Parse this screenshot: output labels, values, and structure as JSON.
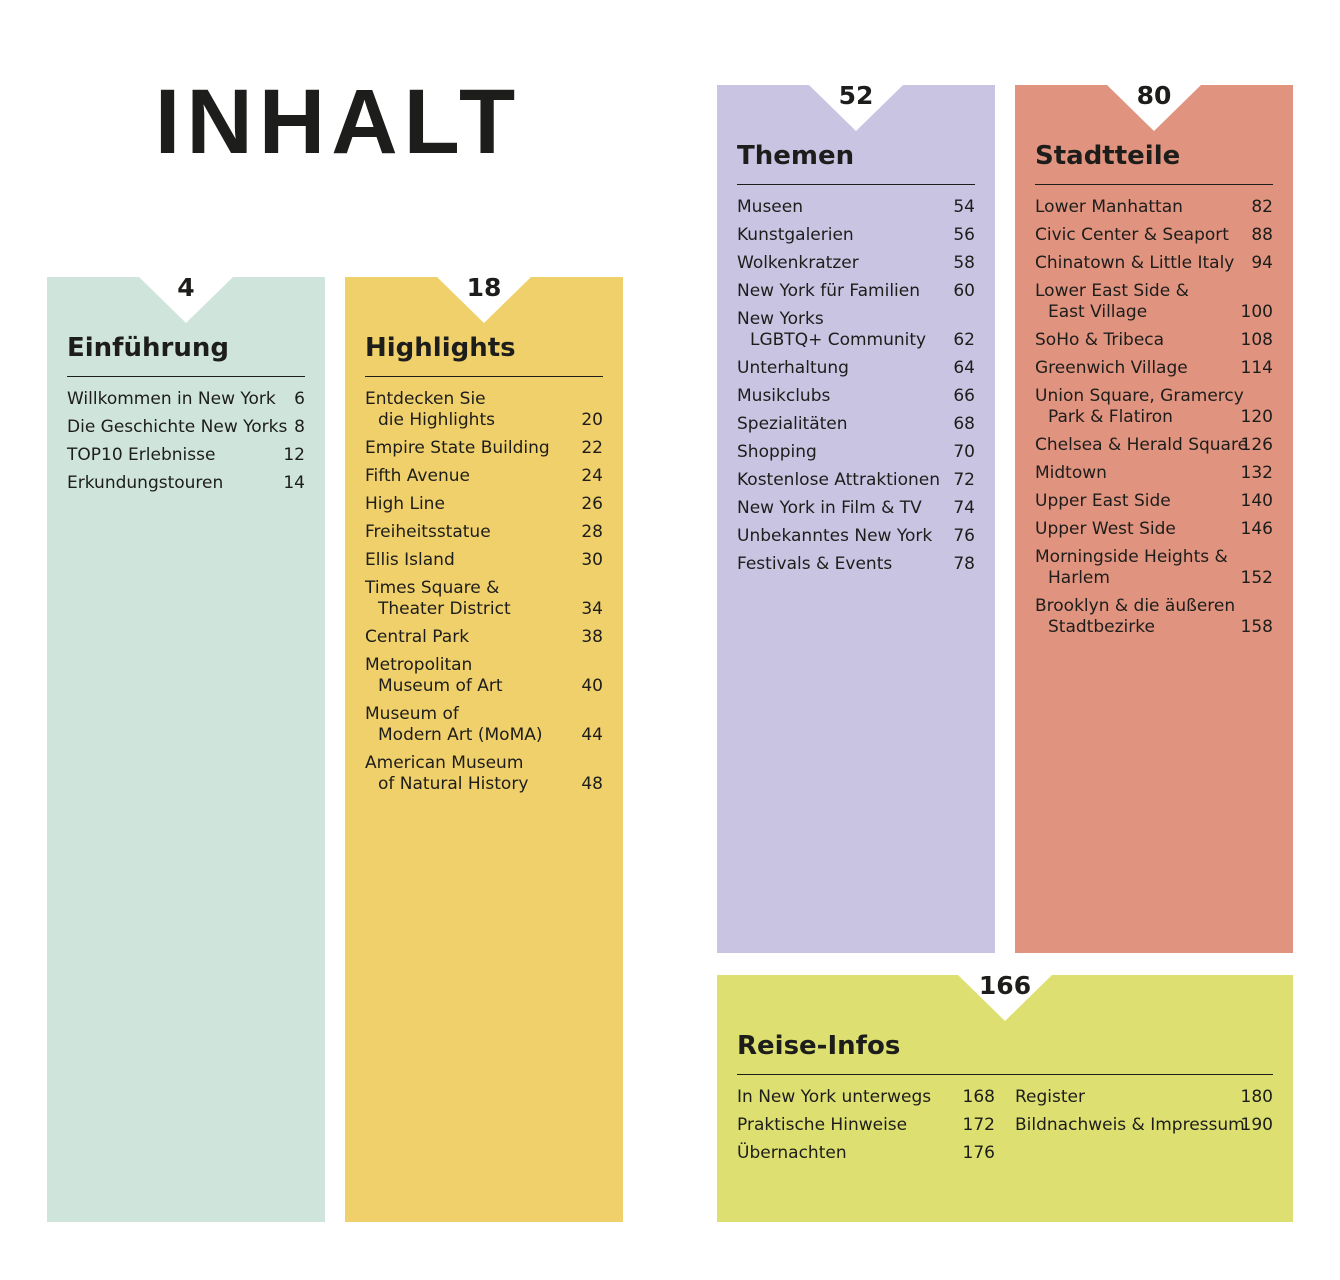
{
  "title": "INHALT",
  "sections": [
    {
      "page": 4,
      "heading": "Einführung",
      "color": "#cfe4da",
      "entries": [
        {
          "lines": [
            "Willkommen in New York"
          ],
          "page": 6
        },
        {
          "lines": [
            "Die Geschichte New Yorks"
          ],
          "page": 8
        },
        {
          "lines": [
            "TOP10 Erlebnisse"
          ],
          "page": 12
        },
        {
          "lines": [
            "Erkundungstouren"
          ],
          "page": 14
        }
      ]
    },
    {
      "page": 18,
      "heading": "Highlights",
      "color": "#f0d06b",
      "entries": [
        {
          "lines": [
            "Entdecken Sie",
            "die Highlights"
          ],
          "page": 20
        },
        {
          "lines": [
            "Empire State Building"
          ],
          "page": 22
        },
        {
          "lines": [
            "Fifth Avenue"
          ],
          "page": 24
        },
        {
          "lines": [
            "High Line"
          ],
          "page": 26
        },
        {
          "lines": [
            "Freiheitsstatue"
          ],
          "page": 28
        },
        {
          "lines": [
            "Ellis Island"
          ],
          "page": 30
        },
        {
          "lines": [
            "Times Square &",
            "Theater District"
          ],
          "page": 34
        },
        {
          "lines": [
            "Central Park"
          ],
          "page": 38
        },
        {
          "lines": [
            "Metropolitan",
            "Museum of Art"
          ],
          "page": 40
        },
        {
          "lines": [
            "Museum of",
            "Modern Art (MoMA)"
          ],
          "page": 44
        },
        {
          "lines": [
            "American Museum",
            "of Natural History"
          ],
          "page": 48
        }
      ]
    },
    {
      "page": 52,
      "heading": "Themen",
      "color": "#c9c4e2",
      "entries": [
        {
          "lines": [
            "Museen"
          ],
          "page": 54
        },
        {
          "lines": [
            "Kunstgalerien"
          ],
          "page": 56
        },
        {
          "lines": [
            "Wolkenkratzer"
          ],
          "page": 58
        },
        {
          "lines": [
            "New York für Familien"
          ],
          "page": 60
        },
        {
          "lines": [
            "New Yorks",
            "LGBTQ+ Community"
          ],
          "page": 62
        },
        {
          "lines": [
            "Unterhaltung"
          ],
          "page": 64
        },
        {
          "lines": [
            "Musikclubs"
          ],
          "page": 66
        },
        {
          "lines": [
            "Spezialitäten"
          ],
          "page": 68
        },
        {
          "lines": [
            "Shopping"
          ],
          "page": 70
        },
        {
          "lines": [
            "Kostenlose Attraktionen"
          ],
          "page": 72
        },
        {
          "lines": [
            "New York in Film & TV"
          ],
          "page": 74
        },
        {
          "lines": [
            "Unbekanntes New York"
          ],
          "page": 76
        },
        {
          "lines": [
            "Festivals & Events"
          ],
          "page": 78
        }
      ]
    },
    {
      "page": 80,
      "heading": "Stadtteile",
      "color": "#e0937f",
      "entries": [
        {
          "lines": [
            "Lower Manhattan"
          ],
          "page": 82
        },
        {
          "lines": [
            "Civic Center & Seaport"
          ],
          "page": 88
        },
        {
          "lines": [
            "Chinatown & Little Italy"
          ],
          "page": 94
        },
        {
          "lines": [
            "Lower East Side &",
            "East Village"
          ],
          "page": 100
        },
        {
          "lines": [
            "SoHo & Tribeca"
          ],
          "page": 108
        },
        {
          "lines": [
            "Greenwich Village"
          ],
          "page": 114
        },
        {
          "lines": [
            "Union Square, Gramercy",
            "Park & Flatiron"
          ],
          "page": 120
        },
        {
          "lines": [
            "Chelsea & Herald Square"
          ],
          "page": 126
        },
        {
          "lines": [
            "Midtown"
          ],
          "page": 132
        },
        {
          "lines": [
            "Upper East Side"
          ],
          "page": 140
        },
        {
          "lines": [
            "Upper West Side"
          ],
          "page": 146
        },
        {
          "lines": [
            "Morningside Heights &",
            "Harlem"
          ],
          "page": 152
        },
        {
          "lines": [
            "Brooklyn & die äußeren",
            "Stadtbezirke"
          ],
          "page": 158
        }
      ]
    },
    {
      "page": 166,
      "heading": "Reise-Infos",
      "color": "#dde070",
      "columns": [
        [
          {
            "lines": [
              "In New York unterwegs"
            ],
            "page": 168
          },
          {
            "lines": [
              "Praktische Hinweise"
            ],
            "page": 172
          },
          {
            "lines": [
              "Übernachten"
            ],
            "page": 176
          }
        ],
        [
          {
            "lines": [
              "Register"
            ],
            "page": 180
          },
          {
            "lines": [
              "Bildnachweis & Impressum"
            ],
            "page": 190
          }
        ]
      ]
    }
  ]
}
